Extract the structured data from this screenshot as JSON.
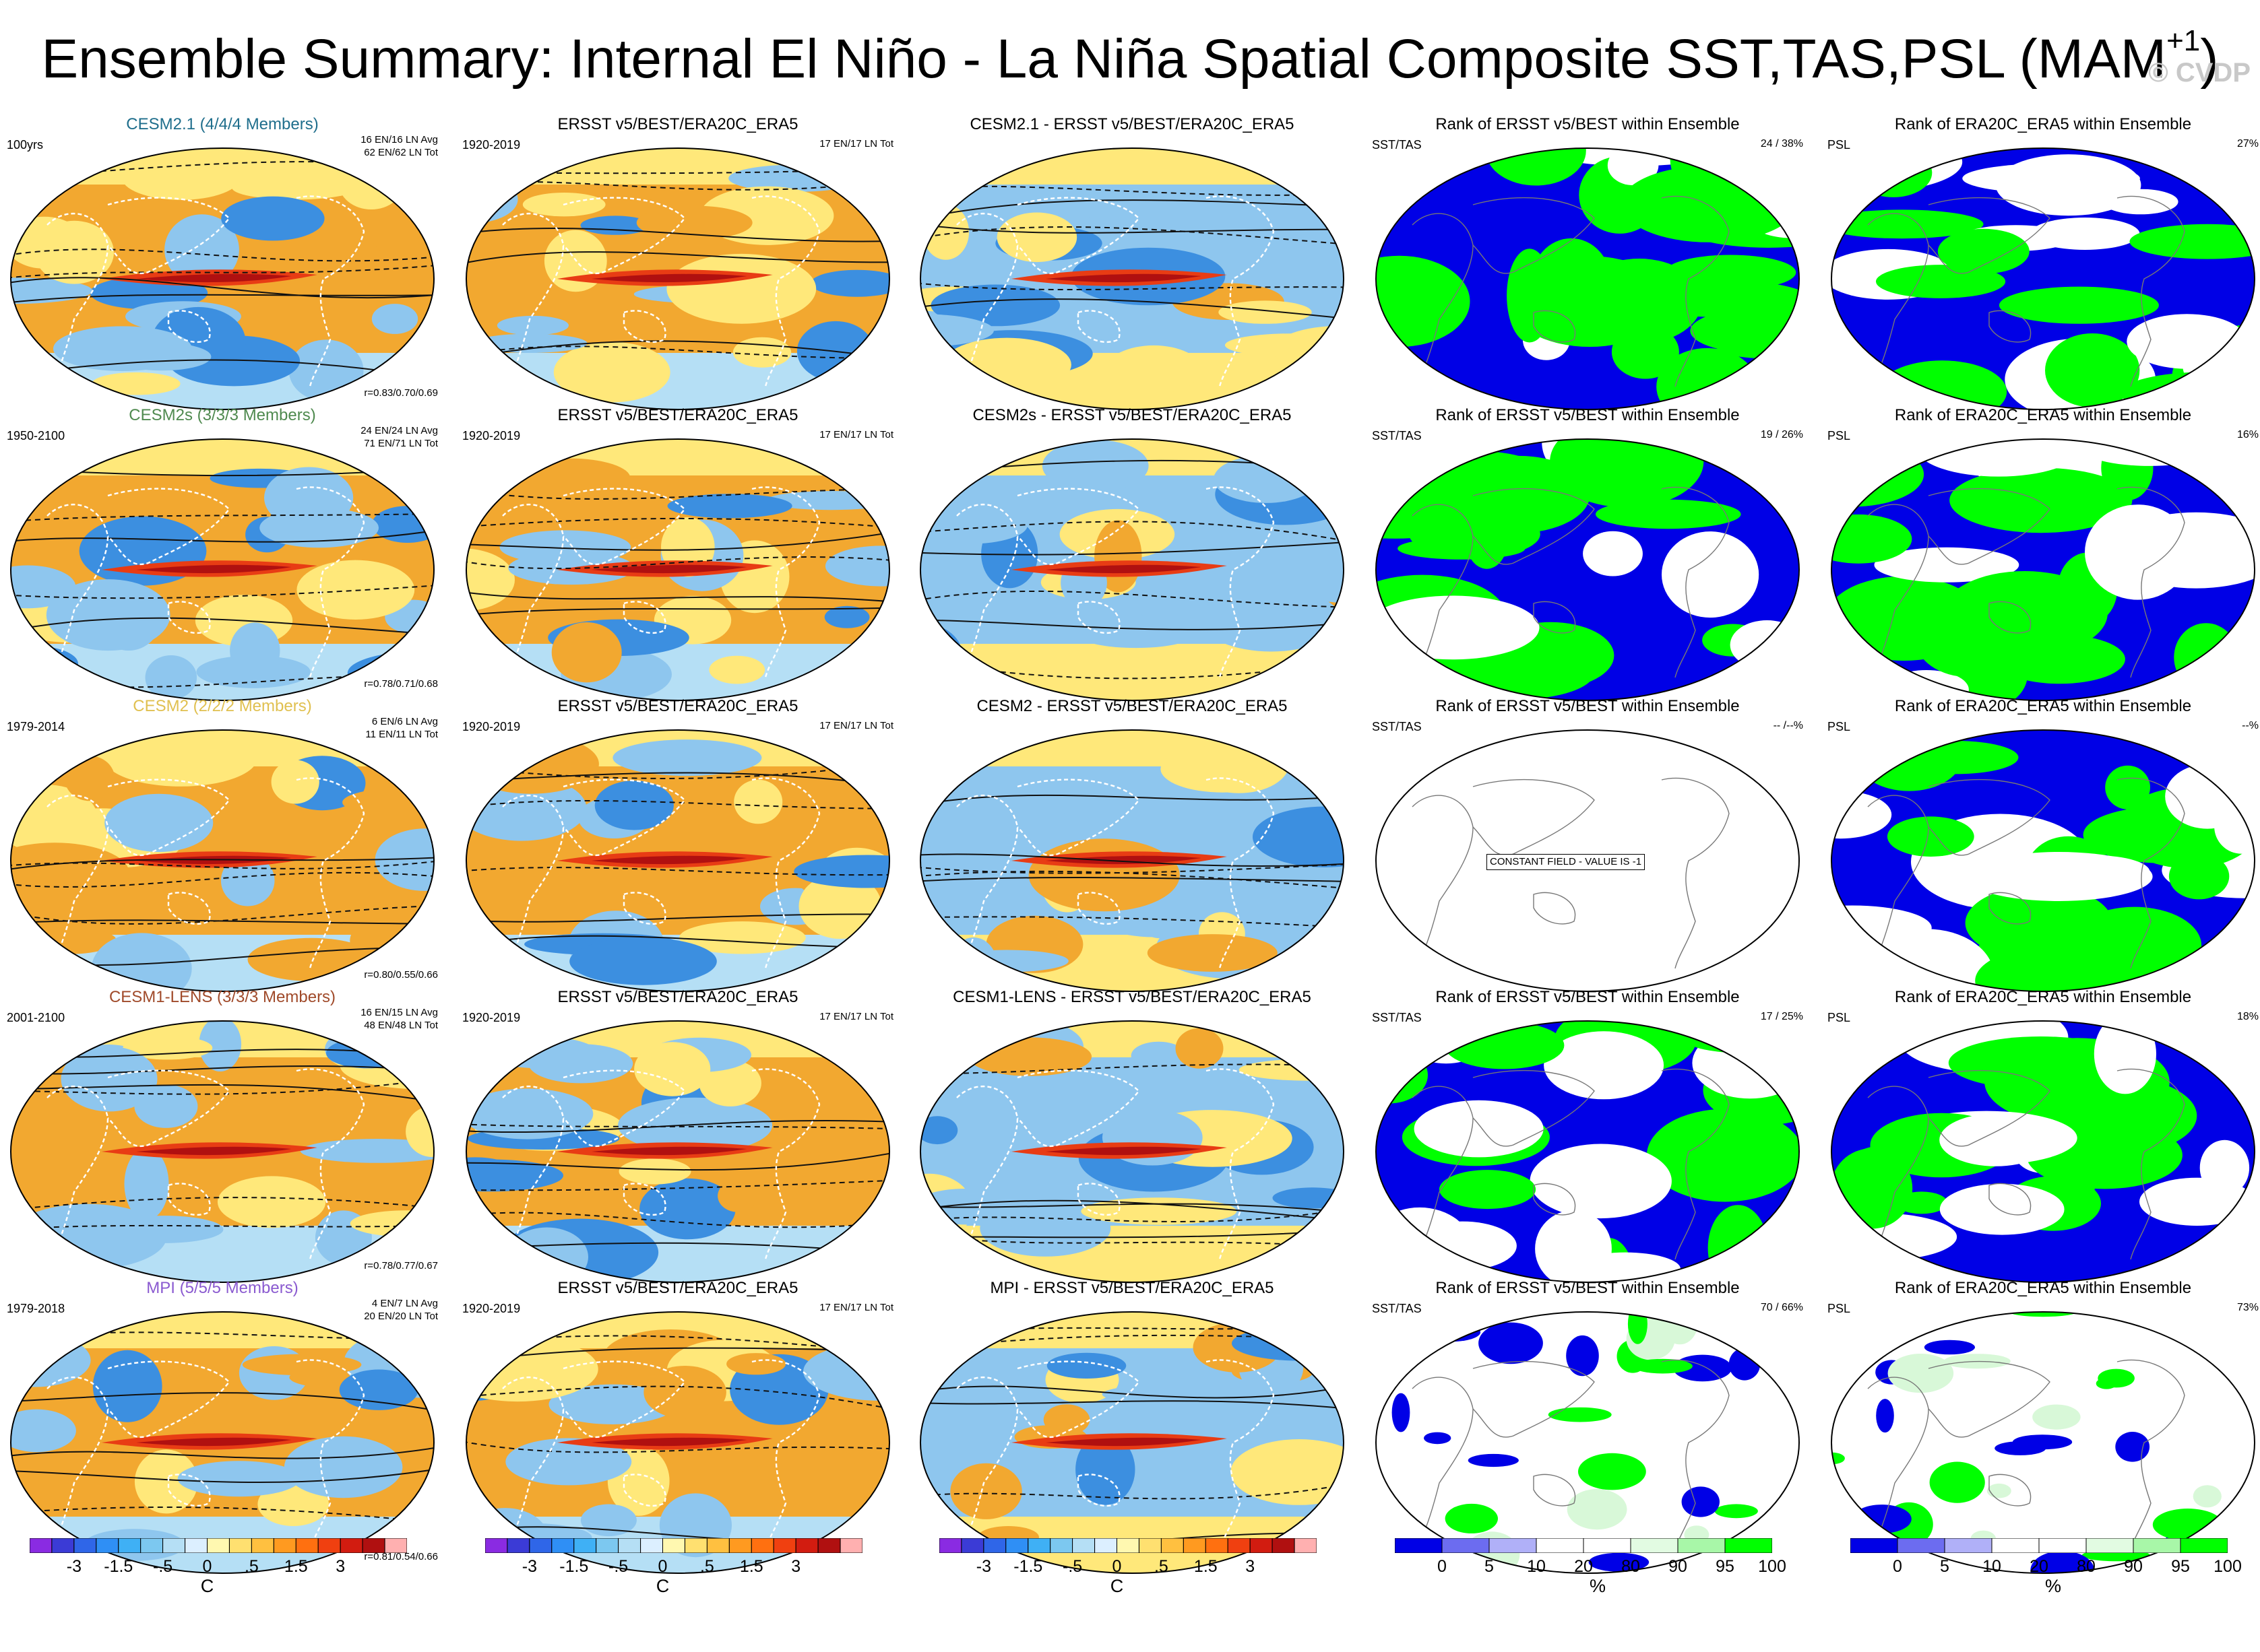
{
  "title": "Ensemble Summary: Internal El Niño - La Niña Spatial Composite SST,TAS,PSL (MAM",
  "title_sup": "+1",
  "watermark": "© CVDP",
  "rows": [
    {
      "model": "CESM2.1 (4/4/4 Members)",
      "model_color": "#1f6e8c",
      "period": "100yrs",
      "info1": "16 EN/16 LN Avg",
      "info2": "62 EN/62 LN Tot",
      "corr": "r=0.83/0.70/0.69",
      "obs_title": "ERSST v5/BEST/ERA20C_ERA5",
      "obs_period": "1920-2019",
      "obs_info": "17 EN/17 LN Tot",
      "diff_title": "CESM2.1 - ERSST v5/BEST/ERA20C_ERA5",
      "rank1_title": "Rank of ERSST v5/BEST within Ensemble",
      "rank1_tag": "SST/TAS",
      "rank1_pct": "24 /  38%",
      "rank2_title": "Rank of ERA20C_ERA5 within Ensemble",
      "rank2_tag": "PSL",
      "rank2_pct": "27%"
    },
    {
      "model": "CESM2s (3/3/3 Members)",
      "model_color": "#4f8a4f",
      "period": "1950-2100",
      "info1": "24 EN/24 LN Avg",
      "info2": "71 EN/71 LN Tot",
      "corr": "r=0.78/0.71/0.68",
      "obs_title": "ERSST v5/BEST/ERA20C_ERA5",
      "obs_period": "1920-2019",
      "obs_info": "17 EN/17 LN Tot",
      "diff_title": "CESM2s - ERSST v5/BEST/ERA20C_ERA5",
      "rank1_title": "Rank of ERSST v5/BEST within Ensemble",
      "rank1_tag": "SST/TAS",
      "rank1_pct": "19 /  26%",
      "rank2_title": "Rank of ERA20C_ERA5 within Ensemble",
      "rank2_tag": "PSL",
      "rank2_pct": "16%"
    },
    {
      "model": "CESM2 (2/2/2 Members)",
      "model_color": "#e0c050",
      "period": "1979-2014",
      "info1": "6 EN/6 LN Avg",
      "info2": "11 EN/11 LN Tot",
      "corr": "r=0.80/0.55/0.66",
      "obs_title": "ERSST v5/BEST/ERA20C_ERA5",
      "obs_period": "1920-2019",
      "obs_info": "17 EN/17 LN Tot",
      "diff_title": "CESM2 - ERSST v5/BEST/ERA20C_ERA5",
      "rank1_title": "Rank of ERSST v5/BEST within Ensemble",
      "rank1_tag": "SST/TAS",
      "rank1_pct": "-- /--%",
      "rank2_title": "Rank of ERA20C_ERA5 within Ensemble",
      "rank2_tag": "PSL",
      "rank2_pct": "--%"
    },
    {
      "model": "CESM1-LENS (3/3/3 Members)",
      "model_color": "#a04a2a",
      "period": "2001-2100",
      "info1": "16 EN/15 LN Avg",
      "info2": "48 EN/48 LN Tot",
      "corr": "r=0.78/0.77/0.67",
      "obs_title": "ERSST v5/BEST/ERA20C_ERA5",
      "obs_period": "1920-2019",
      "obs_info": "17 EN/17 LN Tot",
      "diff_title": "CESM1-LENS - ERSST v5/BEST/ERA20C_ERA5",
      "rank1_title": "Rank of ERSST v5/BEST within Ensemble",
      "rank1_tag": "SST/TAS",
      "rank1_pct": "17 /  25%",
      "rank2_title": "Rank of ERA20C_ERA5 within Ensemble",
      "rank2_tag": "PSL",
      "rank2_pct": "18%"
    },
    {
      "model": "MPI (5/5/5 Members)",
      "model_color": "#8a5ad0",
      "period": "1979-2018",
      "info1": "4 EN/7 LN Avg",
      "info2": "20 EN/20 LN Tot",
      "corr": "r=0.81/0.54/0.66",
      "obs_title": "ERSST v5/BEST/ERA20C_ERA5",
      "obs_period": "1920-2019",
      "obs_info": "17 EN/17 LN Tot",
      "diff_title": "MPI - ERSST v5/BEST/ERA20C_ERA5",
      "rank1_title": "Rank of ERSST v5/BEST within Ensemble",
      "rank1_tag": "SST/TAS",
      "rank1_pct": "70 /  66%",
      "rank2_title": "Rank of ERA20C_ERA5 within Ensemble",
      "rank2_tag": "PSL",
      "rank2_pct": "73%"
    }
  ],
  "constant_field_label": "CONSTANT FIELD - VALUE IS -1",
  "colorbar_temp": {
    "ticks": [
      "-3",
      "-1.5",
      "-.5",
      "0",
      ".5",
      "1.5",
      "3"
    ],
    "unit": "C",
    "colors": [
      "#8a2be2",
      "#3b3bd6",
      "#2f66e8",
      "#2f8ff5",
      "#3fb0f5",
      "#7cc8f0",
      "#b5dff5",
      "#dcefff",
      "#fff8b0",
      "#ffe070",
      "#ffc040",
      "#ff9a20",
      "#ff7010",
      "#f04010",
      "#d21c10",
      "#b01010",
      "#ffb0b0"
    ]
  },
  "colorbar_rank": {
    "ticks": [
      "0",
      "5",
      "10",
      "20",
      "80",
      "90",
      "95",
      "100"
    ],
    "unit": "%",
    "colors": [
      "#0000e6",
      "#6c6cf0",
      "#b0b0f8",
      "#ffffff",
      "#ffffff",
      "#e2fbe2",
      "#a8f7a8",
      "#00ff00"
    ]
  },
  "map_colors": {
    "warm": "#f2a830",
    "warm_light": "#ffe87a",
    "hot": "#e83c14",
    "cool": "#8ec6ee",
    "cold": "#3c8fe0",
    "blue_rank": "#0000e6",
    "green_rank": "#00ff00"
  }
}
